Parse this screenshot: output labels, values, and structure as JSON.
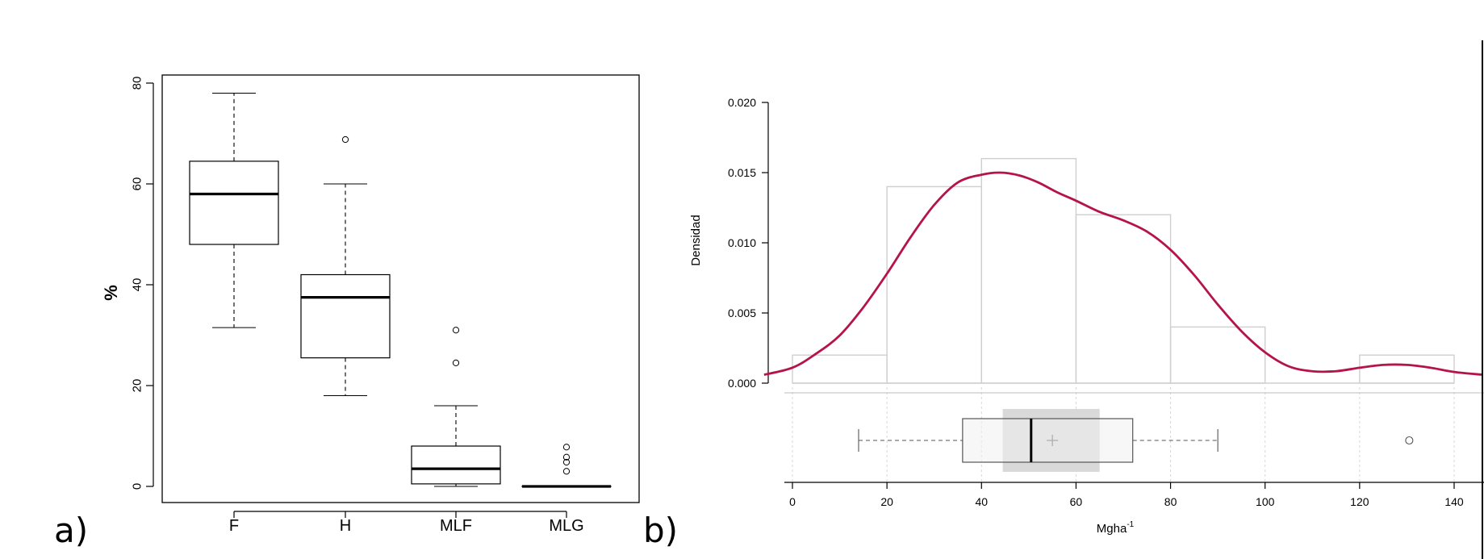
{
  "panel_labels": {
    "a": "a)",
    "b": "b)"
  },
  "chart_data": [
    {
      "type": "box",
      "panel": "a",
      "title": "",
      "xlabel": "",
      "ylabel": "%",
      "ylim": [
        0,
        80
      ],
      "yticks": [
        "0",
        "20",
        "40",
        "60",
        "80"
      ],
      "categories": [
        "F",
        "H",
        "MLF",
        "MLG"
      ],
      "boxes": [
        {
          "label": "F",
          "min": 31.5,
          "q1": 48,
          "median": 58,
          "q3": 64.5,
          "max": 78,
          "outliers": []
        },
        {
          "label": "H",
          "min": 18,
          "q1": 25.5,
          "median": 37.5,
          "q3": 42,
          "max": 60,
          "outliers": [
            68.8
          ]
        },
        {
          "label": "MLF",
          "min": 0,
          "q1": 0.5,
          "median": 3.5,
          "q3": 8,
          "max": 16,
          "outliers": [
            24.5,
            31
          ]
        },
        {
          "label": "MLG",
          "min": 0,
          "q1": 0,
          "median": 0,
          "q3": 0,
          "max": 0,
          "outliers": [
            3,
            4.8,
            5.8,
            7.8
          ]
        }
      ]
    },
    {
      "type": "histogram",
      "panel": "b",
      "title": "",
      "xlabel": "Mgha",
      "xlabel_sup": "-1",
      "ylabel": "Densidad",
      "xlim": [
        0,
        140
      ],
      "ylim": [
        0,
        0.02
      ],
      "xticks": [
        "0",
        "20",
        "40",
        "60",
        "80",
        "100",
        "120",
        "140"
      ],
      "yticks": [
        "0.000",
        "0.005",
        "0.010",
        "0.015",
        "0.020"
      ],
      "bins": [
        {
          "from": 0,
          "to": 20,
          "density": 0.002
        },
        {
          "from": 20,
          "to": 40,
          "density": 0.014
        },
        {
          "from": 40,
          "to": 60,
          "density": 0.016
        },
        {
          "from": 60,
          "to": 80,
          "density": 0.012
        },
        {
          "from": 80,
          "to": 100,
          "density": 0.004
        },
        {
          "from": 100,
          "to": 120,
          "density": 0
        },
        {
          "from": 120,
          "to": 140,
          "density": 0.002
        }
      ],
      "density_curve": {
        "color": "#b5134a",
        "x": [
          -6,
          0,
          5,
          10,
          15,
          20,
          25,
          30,
          35,
          40,
          44,
          48,
          52,
          56,
          60,
          65,
          70,
          75,
          80,
          85,
          90,
          95,
          100,
          105,
          110,
          115,
          120,
          125,
          130,
          135,
          140,
          146
        ],
        "y": [
          0.0006,
          0.0011,
          0.0021,
          0.0034,
          0.0054,
          0.0078,
          0.0104,
          0.0127,
          0.0143,
          0.01485,
          0.015,
          0.0148,
          0.0143,
          0.0136,
          0.013,
          0.0122,
          0.0116,
          0.0108,
          0.0095,
          0.0077,
          0.0056,
          0.0037,
          0.0022,
          0.0012,
          0.00085,
          0.00085,
          0.0011,
          0.0013,
          0.0013,
          0.0011,
          0.0008,
          0.0006
        ]
      },
      "boxplot": {
        "min": 14,
        "q1": 36,
        "median": 50.5,
        "q3": 72,
        "max": 90,
        "mean": 55,
        "ci_low": 44.5,
        "ci_high": 65,
        "outliers": [
          130.5
        ]
      }
    }
  ]
}
